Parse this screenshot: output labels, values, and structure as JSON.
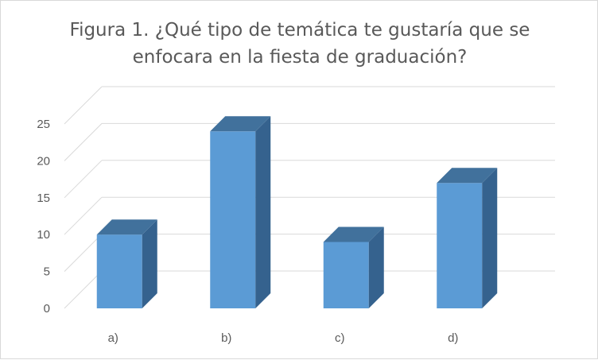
{
  "chart_data": {
    "type": "bar",
    "style": "3d-column",
    "title_lines": [
      "Figura 1. ¿Qué tipo de temática te gustaría que se",
      "enfocara en la fiesta de graduación?"
    ],
    "categories": [
      "a)",
      "b)",
      "c)",
      "d)"
    ],
    "values": [
      10,
      24,
      9,
      17
    ],
    "ylim": [
      0,
      25
    ],
    "yticks": [
      "0",
      "5",
      "10",
      "15",
      "20",
      "25"
    ],
    "grid": true,
    "legend": "none",
    "colors": {
      "bar_front": "#5b9bd5",
      "bar_top": "#41719c",
      "bar_side": "#35628e",
      "grid": "#d9d9d9",
      "text": "#595959"
    }
  }
}
